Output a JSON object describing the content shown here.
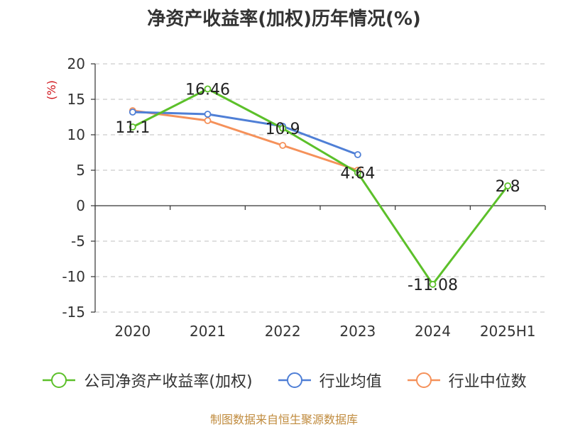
{
  "title": "净资产收益率(加权)历年情况(%)",
  "source": "制图数据来自恒生聚源数据库",
  "chart_data": {
    "type": "line",
    "title": "净资产收益率(加权)历年情况(%)",
    "ylabel": "(%)",
    "xlabel": "",
    "categories": [
      "2020",
      "2021",
      "2022",
      "2023",
      "2024",
      "2025H1"
    ],
    "ylim": [
      -15,
      20
    ],
    "yticks": [
      -15,
      -10,
      -5,
      0,
      5,
      10,
      15,
      20
    ],
    "grid": true,
    "legend_position": "bottom",
    "series": [
      {
        "name": "公司净资产收益率(加权)",
        "color": "#5cc02a",
        "values": [
          11.1,
          16.46,
          10.9,
          4.64,
          -11.08,
          2.8
        ],
        "labels": [
          "11.1",
          "16.46",
          "10.9",
          "4.64",
          "-11.08",
          "2.8"
        ]
      },
      {
        "name": "行业均值",
        "color": "#4f7fd6",
        "values": [
          13.2,
          12.9,
          11.2,
          7.2,
          null,
          null
        ]
      },
      {
        "name": "行业中位数",
        "color": "#f5915a",
        "values": [
          13.4,
          12.0,
          8.5,
          5.0,
          null,
          null
        ]
      }
    ]
  }
}
